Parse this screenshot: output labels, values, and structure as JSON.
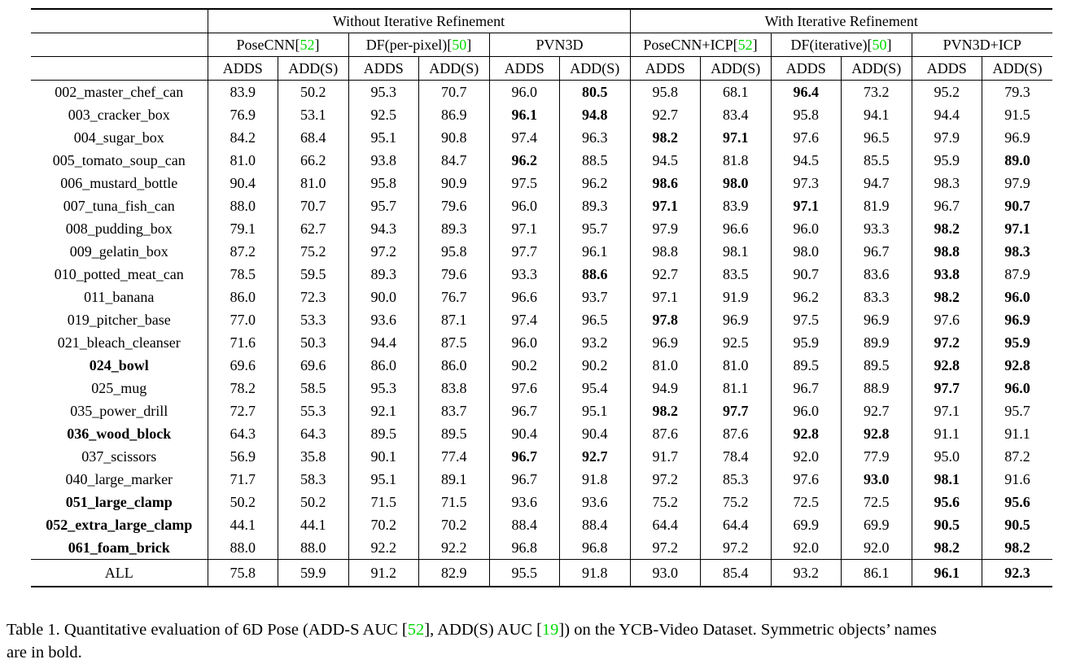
{
  "colors": {
    "cite_green": "#00DB00",
    "text": "#000000",
    "background": "#ffffff"
  },
  "table": {
    "groups": [
      "Without Iterative Refinement",
      "With Iterative Refinement"
    ],
    "methods": [
      {
        "label": "PoseCNN",
        "cite": "52"
      },
      {
        "label": "DF(per-pixel)",
        "cite": "50"
      },
      {
        "label": "PVN3D",
        "cite": ""
      },
      {
        "label": "PoseCNN+ICP",
        "cite": "52"
      },
      {
        "label": "DF(iterative)",
        "cite": "50"
      },
      {
        "label": "PVN3D+ICP",
        "cite": ""
      }
    ],
    "metrics": [
      "ADDS",
      "ADD(S)"
    ],
    "rows": [
      {
        "name": "002_master_chef_can",
        "bold_name": false,
        "values": [
          "83.9",
          "50.2",
          "95.3",
          "70.7",
          "96.0",
          "80.5",
          "95.8",
          "68.1",
          "96.4",
          "73.2",
          "95.2",
          "79.3"
        ],
        "bold": [
          5,
          8
        ]
      },
      {
        "name": "003_cracker_box",
        "bold_name": false,
        "values": [
          "76.9",
          "53.1",
          "92.5",
          "86.9",
          "96.1",
          "94.8",
          "92.7",
          "83.4",
          "95.8",
          "94.1",
          "94.4",
          "91.5"
        ],
        "bold": [
          4,
          5
        ]
      },
      {
        "name": "004_sugar_box",
        "bold_name": false,
        "values": [
          "84.2",
          "68.4",
          "95.1",
          "90.8",
          "97.4",
          "96.3",
          "98.2",
          "97.1",
          "97.6",
          "96.5",
          "97.9",
          "96.9"
        ],
        "bold": [
          6,
          7
        ]
      },
      {
        "name": "005_tomato_soup_can",
        "bold_name": false,
        "values": [
          "81.0",
          "66.2",
          "93.8",
          "84.7",
          "96.2",
          "88.5",
          "94.5",
          "81.8",
          "94.5",
          "85.5",
          "95.9",
          "89.0"
        ],
        "bold": [
          4,
          11
        ]
      },
      {
        "name": "006_mustard_bottle",
        "bold_name": false,
        "values": [
          "90.4",
          "81.0",
          "95.8",
          "90.9",
          "97.5",
          "96.2",
          "98.6",
          "98.0",
          "97.3",
          "94.7",
          "98.3",
          "97.9"
        ],
        "bold": [
          6,
          7
        ]
      },
      {
        "name": "007_tuna_fish_can",
        "bold_name": false,
        "values": [
          "88.0",
          "70.7",
          "95.7",
          "79.6",
          "96.0",
          "89.3",
          "97.1",
          "83.9",
          "97.1",
          "81.9",
          "96.7",
          "90.7"
        ],
        "bold": [
          6,
          8,
          11
        ]
      },
      {
        "name": "008_pudding_box",
        "bold_name": false,
        "values": [
          "79.1",
          "62.7",
          "94.3",
          "89.3",
          "97.1",
          "95.7",
          "97.9",
          "96.6",
          "96.0",
          "93.3",
          "98.2",
          "97.1"
        ],
        "bold": [
          10,
          11
        ]
      },
      {
        "name": "009_gelatin_box",
        "bold_name": false,
        "values": [
          "87.2",
          "75.2",
          "97.2",
          "95.8",
          "97.7",
          "96.1",
          "98.8",
          "98.1",
          "98.0",
          "96.7",
          "98.8",
          "98.3"
        ],
        "bold": [
          10,
          11
        ]
      },
      {
        "name": "010_potted_meat_can",
        "bold_name": false,
        "values": [
          "78.5",
          "59.5",
          "89.3",
          "79.6",
          "93.3",
          "88.6",
          "92.7",
          "83.5",
          "90.7",
          "83.6",
          "93.8",
          "87.9"
        ],
        "bold": [
          5,
          10
        ]
      },
      {
        "name": "011_banana",
        "bold_name": false,
        "values": [
          "86.0",
          "72.3",
          "90.0",
          "76.7",
          "96.6",
          "93.7",
          "97.1",
          "91.9",
          "96.2",
          "83.3",
          "98.2",
          "96.0"
        ],
        "bold": [
          10,
          11
        ]
      },
      {
        "name": "019_pitcher_base",
        "bold_name": false,
        "values": [
          "77.0",
          "53.3",
          "93.6",
          "87.1",
          "97.4",
          "96.5",
          "97.8",
          "96.9",
          "97.5",
          "96.9",
          "97.6",
          "96.9"
        ],
        "bold": [
          6,
          11
        ]
      },
      {
        "name": "021_bleach_cleanser",
        "bold_name": false,
        "values": [
          "71.6",
          "50.3",
          "94.4",
          "87.5",
          "96.0",
          "93.2",
          "96.9",
          "92.5",
          "95.9",
          "89.9",
          "97.2",
          "95.9"
        ],
        "bold": [
          10,
          11
        ]
      },
      {
        "name": "024_bowl",
        "bold_name": true,
        "values": [
          "69.6",
          "69.6",
          "86.0",
          "86.0",
          "90.2",
          "90.2",
          "81.0",
          "81.0",
          "89.5",
          "89.5",
          "92.8",
          "92.8"
        ],
        "bold": [
          10,
          11
        ]
      },
      {
        "name": "025_mug",
        "bold_name": false,
        "values": [
          "78.2",
          "58.5",
          "95.3",
          "83.8",
          "97.6",
          "95.4",
          "94.9",
          "81.1",
          "96.7",
          "88.9",
          "97.7",
          "96.0"
        ],
        "bold": [
          10,
          11
        ]
      },
      {
        "name": "035_power_drill",
        "bold_name": false,
        "values": [
          "72.7",
          "55.3",
          "92.1",
          "83.7",
          "96.7",
          "95.1",
          "98.2",
          "97.7",
          "96.0",
          "92.7",
          "97.1",
          "95.7"
        ],
        "bold": [
          6,
          7
        ]
      },
      {
        "name": "036_wood_block",
        "bold_name": true,
        "values": [
          "64.3",
          "64.3",
          "89.5",
          "89.5",
          "90.4",
          "90.4",
          "87.6",
          "87.6",
          "92.8",
          "92.8",
          "91.1",
          "91.1"
        ],
        "bold": [
          8,
          9
        ]
      },
      {
        "name": "037_scissors",
        "bold_name": false,
        "values": [
          "56.9",
          "35.8",
          "90.1",
          "77.4",
          "96.7",
          "92.7",
          "91.7",
          "78.4",
          "92.0",
          "77.9",
          "95.0",
          "87.2"
        ],
        "bold": [
          4,
          5
        ]
      },
      {
        "name": "040_large_marker",
        "bold_name": false,
        "values": [
          "71.7",
          "58.3",
          "95.1",
          "89.1",
          "96.7",
          "91.8",
          "97.2",
          "85.3",
          "97.6",
          "93.0",
          "98.1",
          "91.6"
        ],
        "bold": [
          9,
          10
        ]
      },
      {
        "name": "051_large_clamp",
        "bold_name": true,
        "values": [
          "50.2",
          "50.2",
          "71.5",
          "71.5",
          "93.6",
          "93.6",
          "75.2",
          "75.2",
          "72.5",
          "72.5",
          "95.6",
          "95.6"
        ],
        "bold": [
          10,
          11
        ]
      },
      {
        "name": "052_extra_large_clamp",
        "bold_name": true,
        "values": [
          "44.1",
          "44.1",
          "70.2",
          "70.2",
          "88.4",
          "88.4",
          "64.4",
          "64.4",
          "69.9",
          "69.9",
          "90.5",
          "90.5"
        ],
        "bold": [
          10,
          11
        ]
      },
      {
        "name": "061_foam_brick",
        "bold_name": true,
        "values": [
          "88.0",
          "88.0",
          "92.2",
          "92.2",
          "96.8",
          "96.8",
          "97.2",
          "97.2",
          "92.0",
          "92.0",
          "98.2",
          "98.2"
        ],
        "bold": [
          10,
          11
        ]
      }
    ],
    "footer_row": {
      "name": "ALL",
      "bold_name": false,
      "values": [
        "75.8",
        "59.9",
        "91.2",
        "82.9",
        "95.5",
        "91.8",
        "93.0",
        "85.4",
        "93.2",
        "86.1",
        "96.1",
        "92.3"
      ],
      "bold": [
        10,
        11
      ]
    }
  },
  "caption": {
    "lines": [
      [
        {
          "text": "Table 1. Quantitative evaluation of 6D Pose (ADD-S AUC ["
        },
        {
          "text": "52",
          "green": true
        },
        {
          "text": "], ADD(S) AUC ["
        },
        {
          "text": "19",
          "green": true
        },
        {
          "text": "]) on the YCB-Video Dataset. Symmetric objects’ names"
        }
      ],
      [
        {
          "text": "are in bold."
        }
      ]
    ]
  }
}
